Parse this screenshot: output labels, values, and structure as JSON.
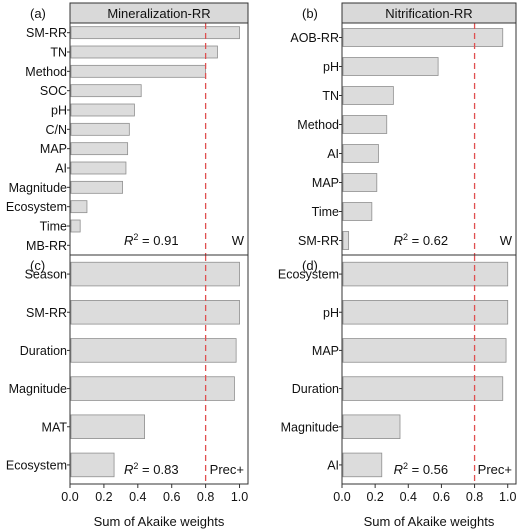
{
  "figure": {
    "xlabel": "Sum of Akaike weights",
    "xticks": [
      "0.0",
      "0.2",
      "0.4",
      "0.6",
      "0.8",
      "1.0"
    ],
    "threshold": 0.8,
    "threshold_color": "#e05050",
    "bar_color": "#dcdcdc",
    "bar_edge": "#8f8f8f",
    "header_fill": "#d9d9d9"
  },
  "chart_data": [
    {
      "type": "bar",
      "orientation": "horizontal",
      "panel": "(a)",
      "title": "Mineralization-RR",
      "categories": [
        "SM-RR",
        "TN",
        "Method",
        "SOC",
        "pH",
        "C/N",
        "MAP",
        "AI",
        "Magnitude",
        "Ecosystem",
        "Time",
        "MB-RR"
      ],
      "values": [
        1.0,
        0.87,
        0.8,
        0.42,
        0.38,
        0.35,
        0.34,
        0.33,
        0.31,
        0.1,
        0.06,
        0.0
      ],
      "r2": "0.91",
      "tag": "W",
      "xlim": [
        0,
        1.05
      ]
    },
    {
      "type": "bar",
      "orientation": "horizontal",
      "panel": "(b)",
      "title": "Nitrification-RR",
      "categories": [
        "AOB-RR",
        "pH",
        "TN",
        "Method",
        "AI",
        "MAP",
        "Time",
        "SM-RR"
      ],
      "values": [
        0.97,
        0.58,
        0.31,
        0.27,
        0.22,
        0.21,
        0.18,
        0.04
      ],
      "r2": "0.62",
      "tag": "W",
      "xlim": [
        0,
        1.05
      ]
    },
    {
      "type": "bar",
      "orientation": "horizontal",
      "panel": "(c)",
      "title": "",
      "categories": [
        "Season",
        "SM-RR",
        "Duration",
        "Magnitude",
        "MAT",
        "Ecosystem"
      ],
      "values": [
        1.0,
        1.0,
        0.98,
        0.97,
        0.44,
        0.26
      ],
      "r2": "0.83",
      "tag": "Prec+",
      "xlim": [
        0,
        1.05
      ]
    },
    {
      "type": "bar",
      "orientation": "horizontal",
      "panel": "(d)",
      "title": "",
      "categories": [
        "Ecosystem",
        "pH",
        "MAP",
        "Duration",
        "Magnitude",
        "AI"
      ],
      "values": [
        1.0,
        1.0,
        0.99,
        0.97,
        0.35,
        0.24
      ],
      "r2": "0.56",
      "tag": "Prec+",
      "xlim": [
        0,
        1.05
      ]
    }
  ]
}
